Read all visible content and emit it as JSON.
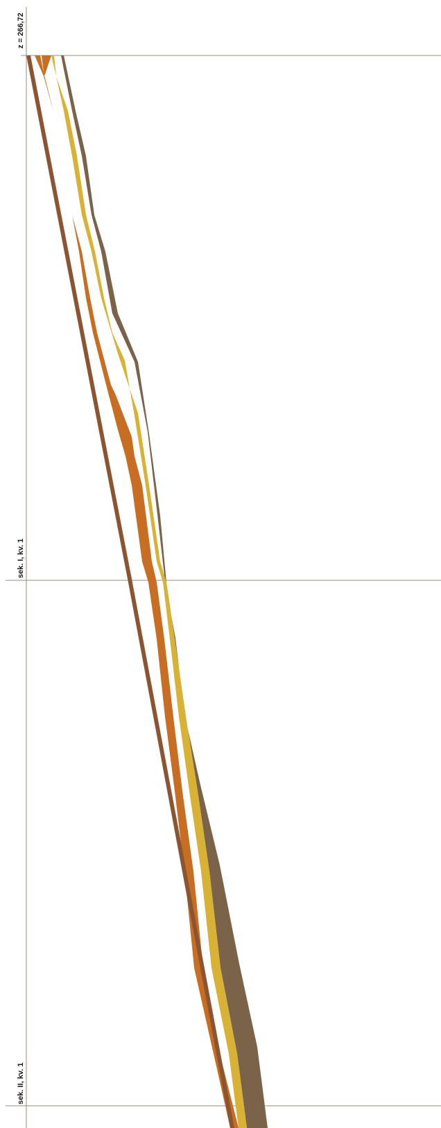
{
  "labels": {
    "top_elevation": "z = 266,72",
    "section_1": "sek. I, kv. 1",
    "section_2": "sek. II, kv. 1"
  },
  "colors": {
    "background": "#ffffff",
    "grid_line": "#9b8b7a",
    "topsoil_dark_brown": "#7b634a",
    "yellow_layer": "#d8b234",
    "orange_layer": "#c86e22",
    "base_edge_brown": "#8a5530"
  },
  "layers": [
    {
      "name": "topsoil",
      "color_key": "topsoil_dark_brown"
    },
    {
      "name": "yellow",
      "color_key": "yellow_layer"
    },
    {
      "name": "orange",
      "color_key": "orange_layer"
    },
    {
      "name": "base-edge",
      "color_key": "base_edge_brown"
    }
  ]
}
